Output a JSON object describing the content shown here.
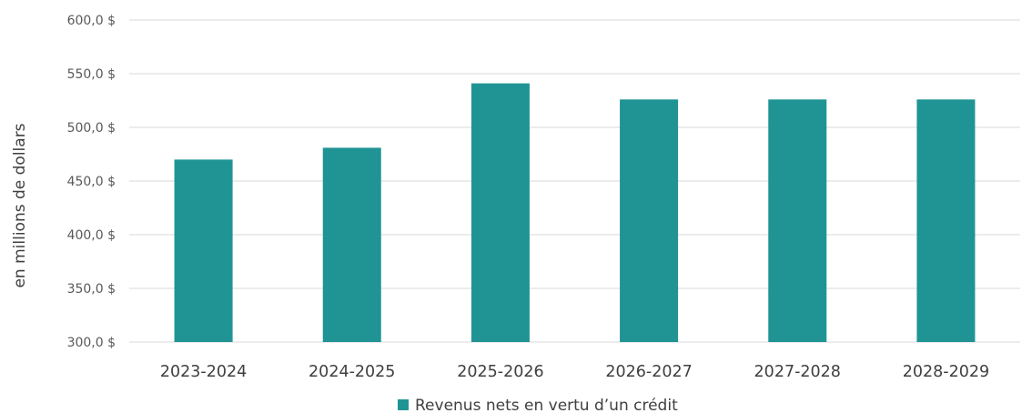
{
  "chart_data": {
    "type": "bar",
    "categories": [
      "2023-2024",
      "2024-2025",
      "2025-2026",
      "2026-2027",
      "2027-2028",
      "2028-2029"
    ],
    "series": [
      {
        "name": "Revenus nets en vertu d’un crédit",
        "values": [
          470,
          481,
          541,
          526,
          526,
          526
        ],
        "color": "#209494"
      }
    ],
    "ylabel": "en millions de dollars",
    "xlabel": "",
    "ylim": [
      300,
      600
    ],
    "yticks": [
      300,
      350,
      400,
      450,
      500,
      550,
      600
    ],
    "ytick_labels": [
      "300,0 $",
      "350,0 $",
      "400,0 $",
      "450,0 $",
      "500,0 $",
      "550,0 $",
      "600,0 $"
    ],
    "grid": true,
    "legend_position": "bottom"
  }
}
